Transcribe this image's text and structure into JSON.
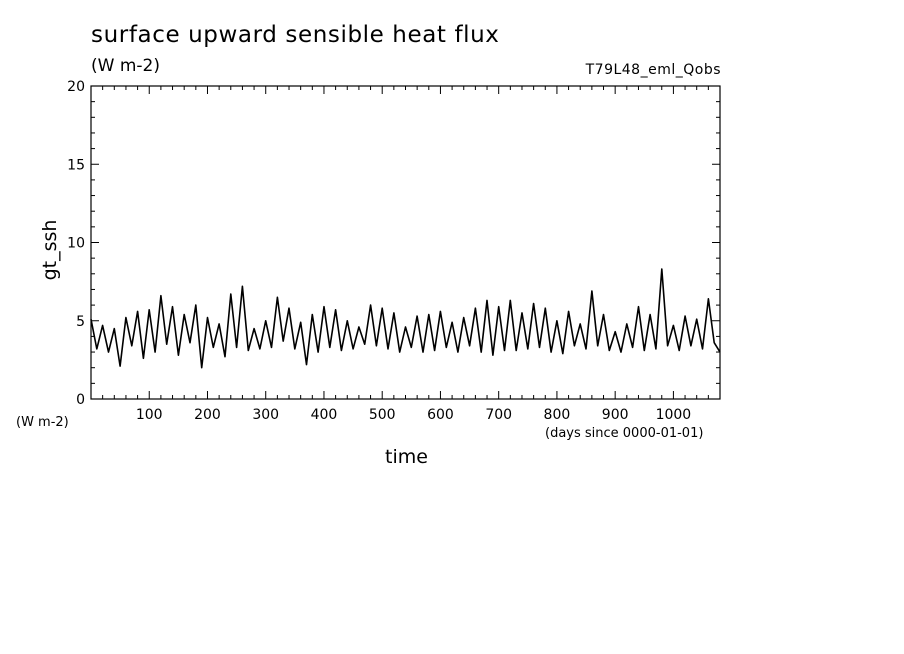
{
  "chart_data": {
    "type": "line",
    "title": "surface upward sensible heat flux",
    "subtitle": "(W m-2)",
    "run_label": "T79L48_eml_Qobs",
    "xlabel": "time",
    "xunits": "(days since 0000-01-01)",
    "ylabel": "gt_ssh",
    "yunits": "(W m-2)",
    "xlim": [
      0,
      1080
    ],
    "ylim": [
      0,
      20
    ],
    "xticks": [
      100,
      200,
      300,
      400,
      500,
      600,
      700,
      800,
      900,
      1000
    ],
    "yticks": [
      0,
      5,
      10,
      15,
      20
    ],
    "grid": false,
    "series": [
      {
        "x": [
          0,
          10,
          20,
          30,
          40,
          50,
          60,
          70,
          80,
          90,
          100,
          110,
          120,
          130,
          140,
          150,
          160,
          170,
          180,
          190,
          200,
          210,
          220,
          230,
          240,
          250,
          260,
          270,
          280,
          290,
          300,
          310,
          320,
          330,
          340,
          350,
          360,
          370,
          380,
          390,
          400,
          410,
          420,
          430,
          440,
          450,
          460,
          470,
          480,
          490,
          500,
          510,
          520,
          530,
          540,
          550,
          560,
          570,
          580,
          590,
          600,
          610,
          620,
          630,
          640,
          650,
          660,
          670,
          680,
          690,
          700,
          710,
          720,
          730,
          740,
          750,
          760,
          770,
          780,
          790,
          800,
          810,
          820,
          830,
          840,
          850,
          860,
          870,
          880,
          890,
          900,
          910,
          920,
          930,
          940,
          950,
          960,
          970,
          980,
          990,
          1000,
          1010,
          1020,
          1030,
          1040,
          1050,
          1060,
          1070,
          1080
        ],
        "y": [
          5.1,
          3.2,
          4.7,
          3.0,
          4.5,
          2.1,
          5.2,
          3.4,
          5.6,
          2.6,
          5.7,
          3.0,
          6.6,
          3.5,
          5.9,
          2.8,
          5.4,
          3.6,
          6.0,
          2.0,
          5.2,
          3.3,
          4.8,
          2.7,
          6.7,
          3.3,
          7.2,
          3.1,
          4.5,
          3.2,
          5.0,
          3.3,
          6.5,
          3.7,
          5.8,
          3.2,
          4.9,
          2.2,
          5.4,
          3.0,
          5.9,
          3.3,
          5.7,
          3.1,
          5.0,
          3.2,
          4.6,
          3.5,
          6.0,
          3.4,
          5.8,
          3.2,
          5.5,
          3.0,
          4.6,
          3.3,
          5.3,
          3.0,
          5.4,
          3.1,
          5.6,
          3.3,
          4.9,
          3.0,
          5.2,
          3.4,
          5.8,
          3.0,
          6.3,
          2.8,
          5.9,
          3.1,
          6.3,
          3.1,
          5.5,
          3.2,
          6.1,
          3.3,
          5.8,
          3.0,
          5.0,
          2.9,
          5.6,
          3.4,
          4.8,
          3.2,
          6.9,
          3.4,
          5.4,
          3.1,
          4.3,
          3.0,
          4.8,
          3.3,
          5.9,
          3.1,
          5.4,
          3.2,
          8.3,
          3.4,
          4.7,
          3.1,
          5.3,
          3.4,
          5.1,
          3.2,
          6.4,
          3.6,
          3.0
        ]
      }
    ]
  }
}
